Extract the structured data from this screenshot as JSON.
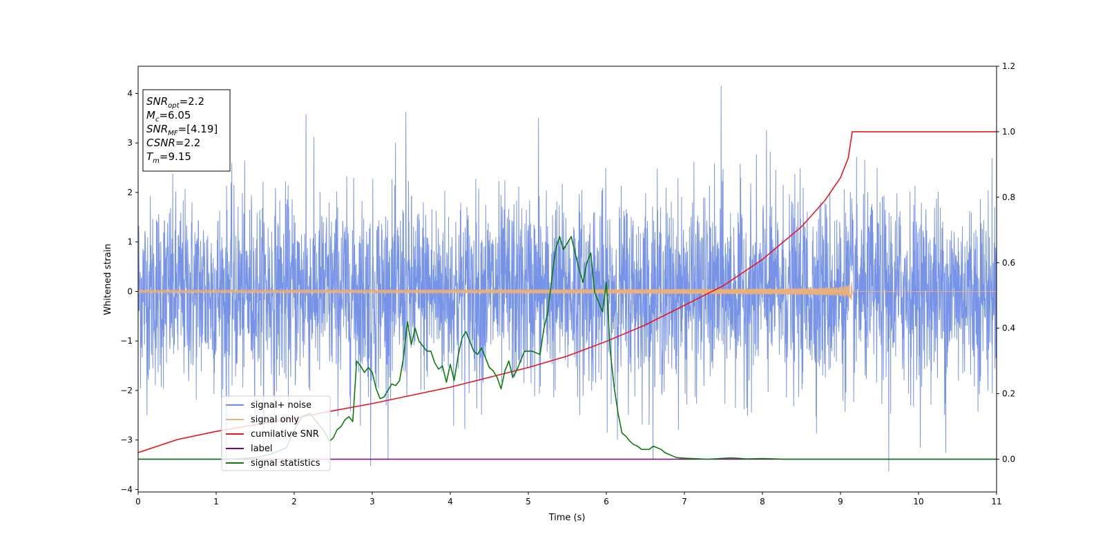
{
  "chart_data": {
    "type": "line",
    "xlabel": "Time (s)",
    "ylabel": "Whitened strain",
    "xlim": [
      0,
      11
    ],
    "ylim": [
      -4.05,
      4.55
    ],
    "y2lim": [
      -0.1,
      1.2
    ],
    "x_ticks": [
      0,
      1,
      2,
      3,
      4,
      5,
      6,
      7,
      8,
      9,
      10,
      11
    ],
    "x_tick_labels": [
      "0",
      "1",
      "2",
      "3",
      "4",
      "5",
      "6",
      "7",
      "8",
      "9",
      "10",
      "11"
    ],
    "y_ticks": [
      -4,
      -3,
      -2,
      -1,
      0,
      1,
      2,
      3,
      4
    ],
    "y_tick_labels": [
      "−4",
      "−3",
      "−2",
      "−1",
      "0",
      "1",
      "2",
      "3",
      "4"
    ],
    "y2_ticks": [
      0.0,
      0.2,
      0.4,
      0.6,
      0.8,
      1.0,
      1.2
    ],
    "y2_tick_labels": [
      "0.0",
      "0.2",
      "0.4",
      "0.6",
      "0.8",
      "1.0",
      "1.2"
    ],
    "grid": false,
    "legend_position": "lower-left",
    "annotation": {
      "lines": [
        {
          "sym": "SNR",
          "sub": "opt",
          "value": "=2.2"
        },
        {
          "sym": "M",
          "sub": "c",
          "value": "=6.05"
        },
        {
          "sym": "SNR",
          "sub": "MF",
          "value": "=[4.19]"
        },
        {
          "sym": "CSNR",
          "sub": "",
          "value": "=2.2"
        },
        {
          "sym": "T",
          "sub": "m",
          "value": "=9.15"
        }
      ]
    },
    "series": [
      {
        "name": "signal+ noise",
        "color": "#6b8ae6",
        "axis": "left",
        "kind": "noise",
        "x_range": [
          0,
          11
        ],
        "amplitude_std": 0.95,
        "peaks": [
          {
            "x": 7.47,
            "y": 4.15
          },
          {
            "x": 3.43,
            "y": 3.62
          },
          {
            "x": 2.15,
            "y": 3.57
          },
          {
            "x": 5.13,
            "y": 3.5
          },
          {
            "x": 8.05,
            "y": 3.25
          },
          {
            "x": 9.62,
            "y": -3.63
          },
          {
            "x": 1.13,
            "y": -3.62
          },
          {
            "x": 2.98,
            "y": -3.52
          },
          {
            "x": 10.35,
            "y": -3.25
          }
        ]
      },
      {
        "name": "signal only",
        "color": "#e8b07a",
        "axis": "left",
        "kind": "chirp",
        "x_range": [
          0,
          11
        ],
        "merger_time": 9.15,
        "peak_amplitude": 0.22
      },
      {
        "name": "cumilative SNR",
        "color": "#e8161c",
        "axis": "right",
        "x": [
          0,
          0.5,
          1,
          1.5,
          2,
          2.5,
          3,
          3.5,
          4,
          4.5,
          5,
          5.5,
          6,
          6.5,
          7,
          7.5,
          8,
          8.5,
          8.8,
          9.0,
          9.1,
          9.15,
          11
        ],
        "values": [
          0.02,
          0.06,
          0.085,
          0.105,
          0.125,
          0.148,
          0.17,
          0.195,
          0.22,
          0.25,
          0.28,
          0.315,
          0.36,
          0.41,
          0.47,
          0.53,
          0.61,
          0.71,
          0.79,
          0.86,
          0.92,
          1.0,
          1.0
        ]
      },
      {
        "name": "label",
        "color": "#800080",
        "axis": "right",
        "x": [
          0,
          11
        ],
        "values": [
          0.0,
          0.0
        ]
      },
      {
        "name": "signal statistics",
        "color": "#0a7a0a",
        "axis": "right",
        "x": [
          0,
          1.2,
          1.5,
          1.7,
          1.9,
          2.0,
          2.1,
          2.2,
          2.3,
          2.4,
          2.45,
          2.5,
          2.55,
          2.6,
          2.65,
          2.7,
          2.75,
          2.8,
          2.85,
          2.9,
          2.95,
          3.0,
          3.05,
          3.1,
          3.15,
          3.2,
          3.25,
          3.3,
          3.35,
          3.4,
          3.45,
          3.5,
          3.55,
          3.6,
          3.65,
          3.7,
          3.75,
          3.8,
          3.85,
          3.9,
          3.95,
          4.0,
          4.05,
          4.1,
          4.15,
          4.2,
          4.25,
          4.3,
          4.35,
          4.4,
          4.45,
          4.5,
          4.55,
          4.6,
          4.65,
          4.7,
          4.75,
          4.8,
          4.85,
          4.9,
          4.95,
          5.0,
          5.05,
          5.1,
          5.15,
          5.2,
          5.25,
          5.3,
          5.35,
          5.4,
          5.45,
          5.5,
          5.55,
          5.6,
          5.65,
          5.7,
          5.75,
          5.8,
          5.85,
          5.9,
          5.95,
          6.0,
          6.05,
          6.1,
          6.15,
          6.2,
          6.25,
          6.3,
          6.35,
          6.4,
          6.45,
          6.5,
          6.55,
          6.6,
          6.65,
          6.7,
          6.75,
          6.8,
          6.85,
          6.9,
          7.0,
          7.3,
          7.6,
          7.8,
          8.0,
          8.3,
          11
        ],
        "values": [
          0.0,
          0.0,
          0.005,
          0.015,
          0.035,
          0.09,
          0.13,
          0.14,
          0.11,
          0.08,
          0.055,
          0.065,
          0.09,
          0.1,
          0.12,
          0.13,
          0.115,
          0.3,
          0.285,
          0.265,
          0.28,
          0.265,
          0.215,
          0.185,
          0.19,
          0.21,
          0.23,
          0.225,
          0.24,
          0.31,
          0.42,
          0.35,
          0.4,
          0.36,
          0.345,
          0.33,
          0.33,
          0.295,
          0.275,
          0.285,
          0.235,
          0.29,
          0.24,
          0.315,
          0.37,
          0.39,
          0.36,
          0.33,
          0.32,
          0.34,
          0.31,
          0.28,
          0.27,
          0.25,
          0.215,
          0.27,
          0.3,
          0.25,
          0.27,
          0.3,
          0.33,
          0.33,
          0.33,
          0.325,
          0.32,
          0.4,
          0.45,
          0.55,
          0.64,
          0.68,
          0.64,
          0.66,
          0.68,
          0.63,
          0.58,
          0.54,
          0.6,
          0.63,
          0.51,
          0.48,
          0.45,
          0.54,
          0.33,
          0.22,
          0.14,
          0.08,
          0.07,
          0.055,
          0.045,
          0.04,
          0.03,
          0.03,
          0.03,
          0.04,
          0.035,
          0.03,
          0.02,
          0.015,
          0.01,
          0.005,
          0.003,
          0.0,
          0.004,
          0.001,
          0.002,
          0.0,
          0.0
        ]
      }
    ]
  }
}
